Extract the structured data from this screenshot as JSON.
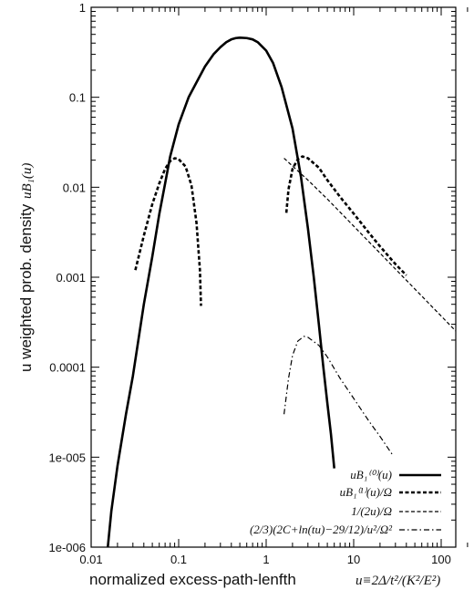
{
  "chart_data": {
    "type": "line",
    "title": "",
    "xlabel": "normalized excess-path-lenfth",
    "xlabel_math": "u≡2Δ/t²/(K²/E²)",
    "ylabel": "u weighted prob. density",
    "ylabel_math": "uB₁(u)",
    "x_scale": "log",
    "y_scale": "log",
    "xlim": [
      0.01,
      350
    ],
    "ylim": [
      1e-06,
      1
    ],
    "x_ticks": [
      {
        "value": 0.01,
        "label": "0.01"
      },
      {
        "value": 0.1,
        "label": "0.1"
      },
      {
        "value": 1,
        "label": "1"
      },
      {
        "value": 10,
        "label": "10"
      },
      {
        "value": 100,
        "label": "100"
      }
    ],
    "y_ticks": [
      {
        "value": 1e-06,
        "label": "1e-006"
      },
      {
        "value": 1e-05,
        "label": "1e-005"
      },
      {
        "value": 0.0001,
        "label": "0.0001"
      },
      {
        "value": 0.001,
        "label": "0.001"
      },
      {
        "value": 0.01,
        "label": "0.01"
      },
      {
        "value": 0.1,
        "label": "0.1"
      },
      {
        "value": 1,
        "label": "1"
      }
    ],
    "grid": false,
    "legend_position": "bottom-right",
    "series": [
      {
        "name": "uB₁⁽⁰⁾(u)",
        "style": "solid-thick",
        "points": [
          [
            0.0155,
            1e-06
          ],
          [
            0.017,
            2.5e-06
          ],
          [
            0.02,
            8e-06
          ],
          [
            0.025,
            3e-05
          ],
          [
            0.03,
            8e-05
          ],
          [
            0.04,
            0.0005
          ],
          [
            0.05,
            0.0017
          ],
          [
            0.06,
            0.005
          ],
          [
            0.07,
            0.011
          ],
          [
            0.08,
            0.022
          ],
          [
            0.1,
            0.05
          ],
          [
            0.13,
            0.1
          ],
          [
            0.15,
            0.13
          ],
          [
            0.2,
            0.22
          ],
          [
            0.25,
            0.3
          ],
          [
            0.3,
            0.36
          ],
          [
            0.35,
            0.41
          ],
          [
            0.4,
            0.44
          ],
          [
            0.45,
            0.455
          ],
          [
            0.5,
            0.46
          ],
          [
            0.6,
            0.455
          ],
          [
            0.7,
            0.44
          ],
          [
            0.8,
            0.41
          ],
          [
            1,
            0.33
          ],
          [
            1.2,
            0.24
          ],
          [
            1.5,
            0.13
          ],
          [
            2,
            0.045
          ],
          [
            2.5,
            0.013
          ],
          [
            3,
            0.0035
          ],
          [
            3.5,
            0.001
          ],
          [
            4,
            0.0003
          ],
          [
            4.5,
            0.0001
          ],
          [
            5,
            4e-05
          ],
          [
            5.5,
            1.8e-05
          ],
          [
            6,
            7.5e-06
          ]
        ]
      },
      {
        "name": "uB₁⁽¹⁾(u)/Ω",
        "style": "dashed-thick",
        "segments": [
          [
            [
              0.032,
              0.0012
            ],
            [
              0.04,
              0.0029
            ],
            [
              0.05,
              0.0065
            ],
            [
              0.06,
              0.011
            ],
            [
              0.07,
              0.016
            ],
            [
              0.08,
              0.0195
            ],
            [
              0.09,
              0.021
            ],
            [
              0.1,
              0.0205
            ],
            [
              0.12,
              0.017
            ],
            [
              0.14,
              0.0105
            ],
            [
              0.16,
              0.004
            ],
            [
              0.175,
              0.0012
            ],
            [
              0.18,
              0.00048
            ]
          ],
          [
            [
              1.7,
              0.0052
            ],
            [
              1.8,
              0.0095
            ],
            [
              2,
              0.016
            ],
            [
              2.3,
              0.0205
            ],
            [
              2.6,
              0.022
            ],
            [
              3,
              0.021
            ],
            [
              4,
              0.0165
            ],
            [
              5,
              0.012
            ],
            [
              7,
              0.0078
            ],
            [
              10,
              0.0051
            ],
            [
              15,
              0.0031
            ],
            [
              20,
              0.0022
            ],
            [
              30,
              0.0014
            ],
            [
              40,
              0.00105
            ]
          ]
        ]
      },
      {
        "name": "1/(2u)/Ω",
        "style": "dashed-thin",
        "points": [
          [
            1.6,
            0.021
          ],
          [
            3,
            0.012
          ],
          [
            5,
            0.0074
          ],
          [
            10,
            0.0037
          ],
          [
            20,
            0.00185
          ],
          [
            50,
            0.00074
          ],
          [
            100,
            0.00037
          ],
          [
            200,
            0.000185
          ],
          [
            350,
            0.000105
          ]
        ]
      },
      {
        "name": "(2/3)(2C+ln(tu)−29/12)/u²/Ω²",
        "style": "dashdot",
        "points": [
          [
            1.6,
            3e-05
          ],
          [
            1.8,
            7.5e-05
          ],
          [
            2,
            0.000135
          ],
          [
            2.3,
            0.000195
          ],
          [
            2.7,
            0.00022
          ],
          [
            3,
            0.000215
          ],
          [
            4,
            0.000175
          ],
          [
            5,
            0.00013
          ],
          [
            7,
            7.5e-05
          ],
          [
            10,
            4.5e-05
          ],
          [
            15,
            2.5e-05
          ],
          [
            20,
            1.7e-05
          ],
          [
            28,
            1.05e-05
          ]
        ]
      }
    ]
  }
}
